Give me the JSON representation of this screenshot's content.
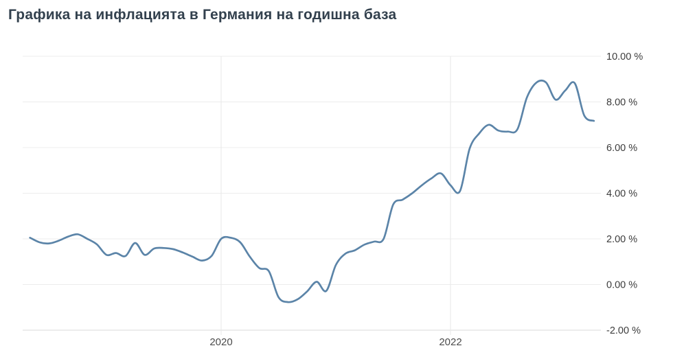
{
  "page": {
    "title": "Графика на инфлацията в Германия на годишна база"
  },
  "chart_data": {
    "type": "line",
    "title": "Графика на инфлацията в Германия на годишна база",
    "xlabel": "",
    "ylabel": "",
    "ylim": [
      -2,
      10
    ],
    "xlim_years": [
      2018.29,
      2023.31
    ],
    "grid": true,
    "legend_position": "none",
    "y_axis_side": "right",
    "x_ticks": [
      {
        "value": 2020,
        "label": "2020"
      },
      {
        "value": 2022,
        "label": "2022"
      }
    ],
    "y_ticks": [
      {
        "value": 10,
        "label": "10.00 %"
      },
      {
        "value": 8,
        "label": "8.00 %"
      },
      {
        "value": 6,
        "label": "6.00 %"
      },
      {
        "value": 4,
        "label": "4.00 %"
      },
      {
        "value": 2,
        "label": "2.00 %"
      },
      {
        "value": 0,
        "label": "0.00 %"
      },
      {
        "value": -2,
        "label": "-2.00 %"
      }
    ],
    "series": [
      {
        "start_month": "2018-05",
        "end_month": "2023-04",
        "frequency": "monthly",
        "color": "#5b84a8",
        "values": [
          2.05,
          1.85,
          1.8,
          1.92,
          2.1,
          2.2,
          2.0,
          1.76,
          1.3,
          1.38,
          1.25,
          1.82,
          1.3,
          1.58,
          1.6,
          1.55,
          1.4,
          1.22,
          1.05,
          1.25,
          2.0,
          2.05,
          1.85,
          1.22,
          0.72,
          0.58,
          -0.55,
          -0.77,
          -0.65,
          -0.3,
          0.12,
          -0.28,
          0.85,
          1.35,
          1.5,
          1.75,
          1.88,
          2.0,
          3.5,
          3.72,
          4.0,
          4.35,
          4.65,
          4.87,
          4.35,
          4.1,
          5.95,
          6.62,
          7.0,
          6.75,
          6.7,
          6.8,
          8.2,
          8.85,
          8.85,
          8.1,
          8.5,
          8.82,
          7.4,
          7.17
        ]
      }
    ],
    "colors": {
      "background": "#ffffff",
      "title_text": "#33414e",
      "grid_horizontal": "#ececec",
      "grid_vertical": "#e7e7e7",
      "axis_line": "#d9d9d9",
      "y_tick_text": "#3c3c3c",
      "x_tick_text": "#4b4b4b",
      "line": "#5b84a8"
    }
  }
}
